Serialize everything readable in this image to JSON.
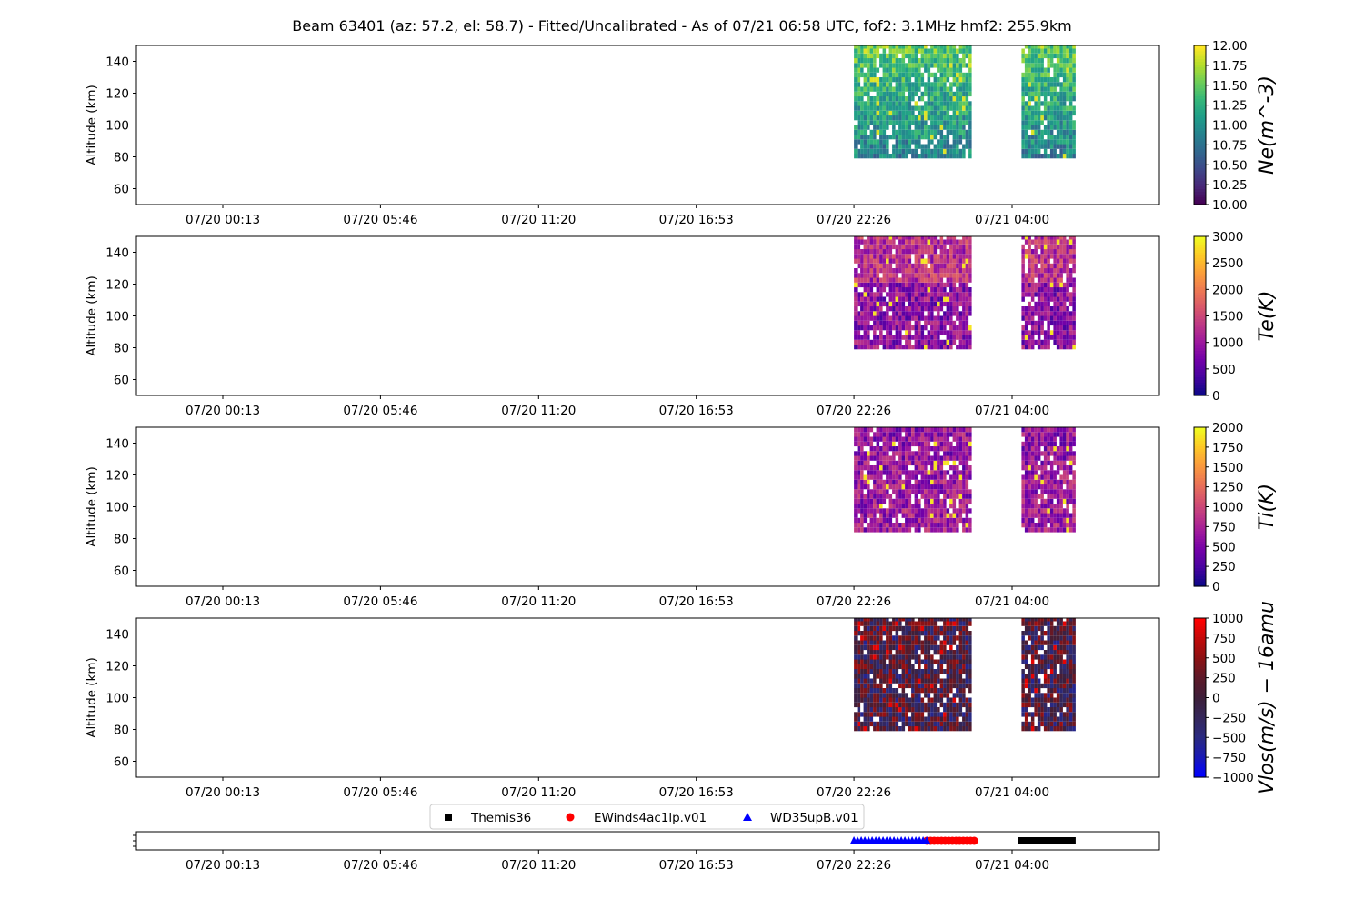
{
  "chart_data": {
    "type": "heatmap",
    "title": "Beam 63401 (az: 57.2, el: 58.7) - Fitted/Uncalibrated - As of 07/21 06:58 UTC, fof2: 3.1MHz  hmf2: 255.9km",
    "x_tick_labels": [
      "07/20 00:13",
      "07/20 05:46",
      "07/20 11:20",
      "07/20 16:53",
      "07/20 22:26",
      "07/21 04:00"
    ],
    "ylabel": "Altitude (km)",
    "yticks": [
      60,
      80,
      100,
      120,
      140
    ],
    "ylim": [
      50,
      150
    ],
    "data_blocks_x": [
      {
        "from": "07/20 22:26",
        "to": "07/21 02:40"
      },
      {
        "from": "07/21 04:20",
        "to": "07/21 06:15"
      }
    ],
    "panels": [
      {
        "variable": "Ne",
        "colorbar_label": "Ne(m^-3)",
        "colormap": "viridis",
        "vmin": 10.0,
        "vmax": 12.0,
        "colorbar_ticks": [
          "10.00",
          "10.25",
          "10.50",
          "10.75",
          "11.00",
          "11.25",
          "11.50",
          "11.75",
          "12.00"
        ],
        "altitude_range_km": [
          79,
          150
        ]
      },
      {
        "variable": "Te",
        "colorbar_label": "Te(K)",
        "colormap": "plasma",
        "vmin": 0,
        "vmax": 3000,
        "colorbar_ticks": [
          "0",
          "500",
          "1000",
          "1500",
          "2000",
          "2500",
          "3000"
        ],
        "altitude_range_km": [
          79,
          150
        ]
      },
      {
        "variable": "Ti",
        "colorbar_label": "Ti(K)",
        "colormap": "plasma",
        "vmin": 0,
        "vmax": 2000,
        "colorbar_ticks": [
          "0",
          "250",
          "500",
          "750",
          "1000",
          "1250",
          "1500",
          "1750",
          "2000"
        ],
        "altitude_range_km": [
          84,
          150
        ]
      },
      {
        "variable": "Vlos",
        "colorbar_label": "Vlos(m/s) − 16amu",
        "colormap": "bwr-dark",
        "vmin": -1000,
        "vmax": 1000,
        "colorbar_ticks": [
          "−1000",
          "−750",
          "−500",
          "−250",
          "0",
          "250",
          "500",
          "750",
          "1000"
        ],
        "altitude_range_km": [
          79,
          150
        ]
      }
    ],
    "legend": {
      "position": "bottom-center",
      "items": [
        {
          "label": "Themis36",
          "marker": "square",
          "color": "#000000",
          "from": "07/21 04:20",
          "to": "07/21 06:15"
        },
        {
          "label": "EWinds4ac1lp.v01",
          "marker": "circle",
          "color": "#ff0000",
          "from": "07/21 01:00",
          "to": "07/21 02:40"
        },
        {
          "label": "WD35upB.v01",
          "marker": "triangle",
          "color": "#0000ff",
          "from": "07/20 22:26",
          "to": "07/21 01:00"
        }
      ]
    }
  }
}
